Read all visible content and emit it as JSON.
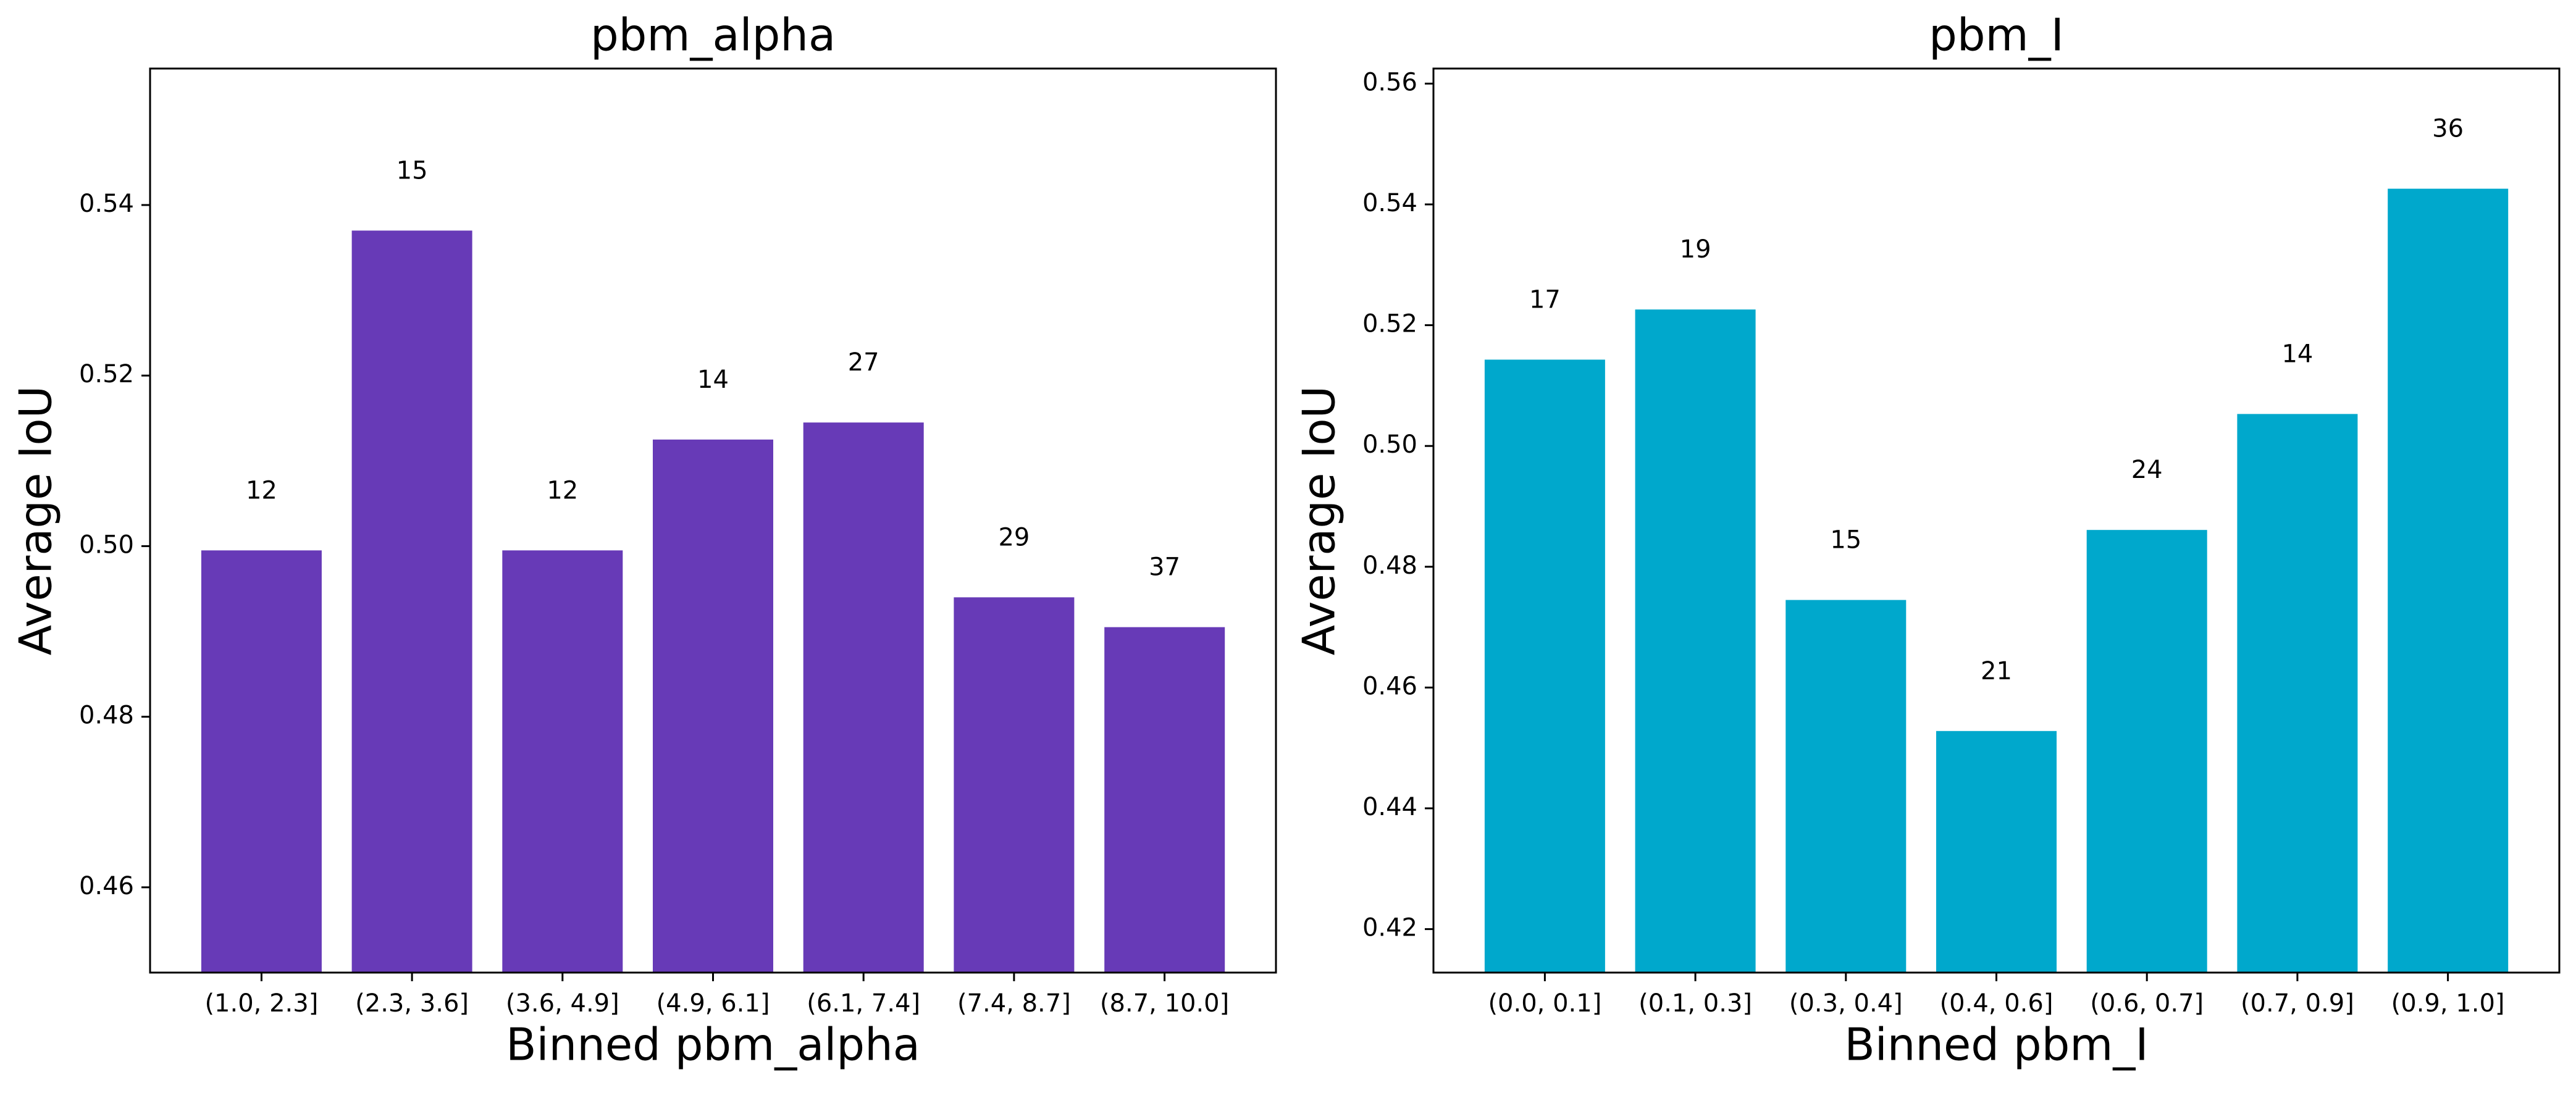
{
  "chart_data": [
    {
      "type": "bar",
      "title": "pbm_alpha",
      "xlabel": "Binned pbm_alpha",
      "ylabel": "Average IoU",
      "ylim": [
        0.45,
        0.556
      ],
      "yticks": [
        0.46,
        0.48,
        0.5,
        0.52,
        0.54
      ],
      "ytick_labels": [
        "0.46",
        "0.48",
        "0.50",
        "0.52",
        "0.54"
      ],
      "categories": [
        "(1.0, 2.3]",
        "(2.3, 3.6]",
        "(3.6, 4.9]",
        "(4.9, 6.1]",
        "(6.1, 7.4]",
        "(7.4, 8.7]",
        "(8.7, 10.0]"
      ],
      "values": [
        0.4995,
        0.537,
        0.4995,
        0.5125,
        0.5145,
        0.494,
        0.4905
      ],
      "counts": [
        "12",
        "15",
        "12",
        "14",
        "27",
        "29",
        "37"
      ],
      "color": "#673ab7",
      "grid": false
    },
    {
      "type": "bar",
      "title": "pbm_I",
      "xlabel": "Binned pbm_I",
      "ylabel": "Average IoU",
      "ylim": [
        0.4128,
        0.5625
      ],
      "yticks": [
        0.42,
        0.44,
        0.46,
        0.48,
        0.5,
        0.52,
        0.54,
        0.56
      ],
      "ytick_labels": [
        "0.42",
        "0.44",
        "0.46",
        "0.48",
        "0.50",
        "0.52",
        "0.54",
        "0.56"
      ],
      "categories": [
        "(0.0, 0.1]",
        "(0.1, 0.3]",
        "(0.3, 0.4]",
        "(0.4, 0.6]",
        "(0.6, 0.7]",
        "(0.7, 0.9]",
        "(0.9, 1.0]"
      ],
      "values": [
        0.5143,
        0.5226,
        0.4745,
        0.4528,
        0.4861,
        0.5053,
        0.5426
      ],
      "counts": [
        "17",
        "19",
        "15",
        "21",
        "24",
        "14",
        "36"
      ],
      "color": "#00a8cc",
      "grid": false
    }
  ]
}
